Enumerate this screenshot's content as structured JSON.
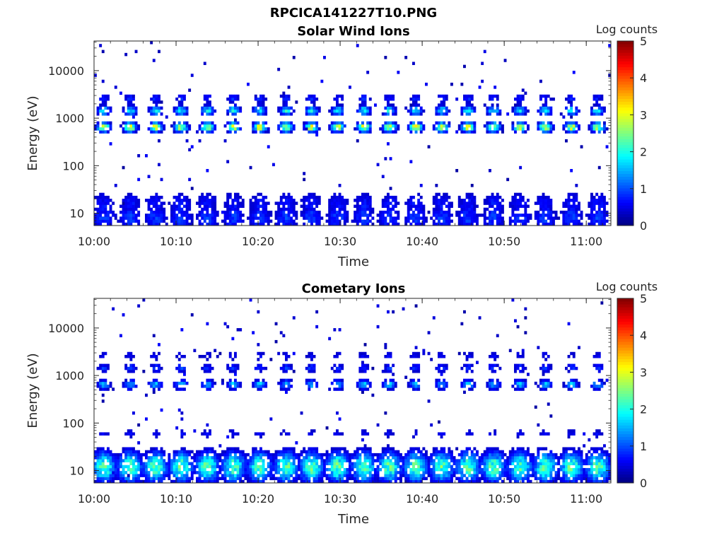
{
  "figure": {
    "title": "RPCICA141227T10.PNG"
  },
  "chart_data": [
    {
      "type": "heatmap",
      "title": "Solar Wind Ions",
      "xlabel": "Time",
      "ylabel": "Energy (eV)",
      "x_range": [
        "10:00",
        "11:03"
      ],
      "x_ticks": [
        "10:00",
        "10:10",
        "10:20",
        "10:30",
        "10:40",
        "10:50",
        "11:00"
      ],
      "y_scale": "log",
      "y_range": [
        5.5,
        42000
      ],
      "y_ticks": [
        "10",
        "100",
        "1000",
        "10000"
      ],
      "colorbar": {
        "label": "Log counts",
        "range": [
          0,
          5
        ],
        "ticks": [
          "0",
          "1",
          "2",
          "3",
          "4",
          "5"
        ],
        "colormap": "jet"
      },
      "sweep_centers_min": [
        1.2,
        4.4,
        7.5,
        10.6,
        13.8,
        17.0,
        20.2,
        23.4,
        26.5,
        29.7,
        32.9,
        36.0,
        39.2,
        42.4,
        45.6,
        48.7,
        51.9,
        55.0,
        58.2,
        61.4
      ],
      "peaks": [
        {
          "energy_eV": 650,
          "log_counts": 3.0
        },
        {
          "energy_eV": 1450,
          "log_counts": 1.9
        },
        {
          "energy_eV": 2600,
          "log_counts": 0.8
        },
        {
          "energy_eV": 15,
          "log_counts": 0.7
        },
        {
          "energy_eV": 8,
          "log_counts": 0.9
        }
      ]
    },
    {
      "type": "heatmap",
      "title": "Cometary Ions",
      "xlabel": "Time",
      "ylabel": "Energy (eV)",
      "x_range": [
        "10:00",
        "11:03"
      ],
      "x_ticks": [
        "10:00",
        "10:10",
        "10:20",
        "10:30",
        "10:40",
        "10:50",
        "11:00"
      ],
      "y_scale": "log",
      "y_range": [
        5.5,
        42000
      ],
      "y_ticks": [
        "10",
        "100",
        "1000",
        "10000"
      ],
      "colorbar": {
        "label": "Log counts",
        "range": [
          0,
          5
        ],
        "ticks": [
          "0",
          "1",
          "2",
          "3",
          "4",
          "5"
        ],
        "colormap": "jet"
      },
      "sweep_centers_min": [
        1.2,
        4.4,
        7.5,
        10.6,
        13.8,
        17.0,
        20.2,
        23.4,
        26.5,
        29.7,
        32.9,
        36.0,
        39.2,
        42.4,
        45.6,
        48.7,
        51.9,
        55.0,
        58.2,
        61.4
      ],
      "peaks": [
        {
          "energy_eV": 650,
          "log_counts": 1.6
        },
        {
          "energy_eV": 1450,
          "log_counts": 0.9
        },
        {
          "energy_eV": 2600,
          "log_counts": 0.6
        },
        {
          "energy_eV": 60,
          "log_counts": 0.6
        },
        {
          "energy_eV": 12,
          "log_counts": 2.3
        }
      ]
    }
  ]
}
